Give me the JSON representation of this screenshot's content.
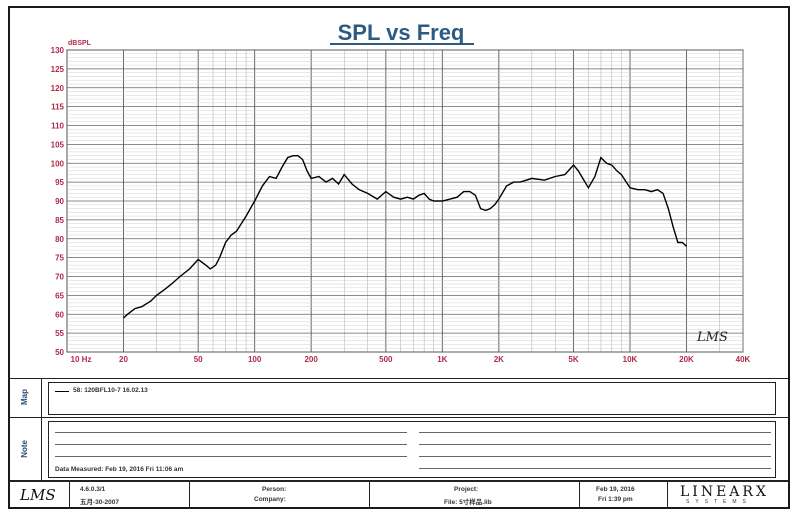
{
  "chart_data": {
    "type": "line",
    "title": "SPL vs Freq",
    "ylabel_unit": "dBSPL",
    "xscale": "log",
    "xlim": [
      10,
      40000
    ],
    "ylim": [
      50,
      130
    ],
    "x_tick_labels": [
      "10 Hz",
      "20",
      "50",
      "100",
      "200",
      "500",
      "1K",
      "2K",
      "5K",
      "10K",
      "20K",
      "40K"
    ],
    "x_tick_values": [
      10,
      20,
      50,
      100,
      200,
      500,
      1000,
      2000,
      5000,
      10000,
      20000,
      40000
    ],
    "y_ticks": [
      50,
      55,
      60,
      65,
      70,
      75,
      80,
      85,
      90,
      95,
      100,
      105,
      110,
      115,
      120,
      125,
      130
    ],
    "grid": true,
    "series": [
      {
        "name": "58: 120BFL10-7 16.02.13",
        "color": "#000000",
        "x": [
          20,
          21,
          23,
          25,
          28,
          30,
          33,
          36,
          40,
          45,
          50,
          55,
          58,
          62,
          65,
          70,
          75,
          80,
          90,
          100,
          110,
          120,
          130,
          140,
          150,
          160,
          170,
          180,
          190,
          200,
          220,
          240,
          260,
          280,
          300,
          330,
          360,
          400,
          450,
          500,
          550,
          600,
          650,
          700,
          750,
          800,
          850,
          900,
          1000,
          1100,
          1200,
          1300,
          1400,
          1500,
          1600,
          1700,
          1800,
          1900,
          2000,
          2200,
          2400,
          2600,
          3000,
          3500,
          4000,
          4500,
          5000,
          5300,
          5600,
          6000,
          6500,
          7000,
          7500,
          8000,
          8500,
          9000,
          10000,
          11000,
          12000,
          13000,
          14000,
          15000,
          16000,
          17000,
          18000,
          19000,
          20000
        ],
        "y": [
          59,
          60,
          61.5,
          62,
          63.5,
          65,
          66.5,
          68,
          70,
          72,
          74.5,
          73,
          72,
          73,
          75,
          79,
          81,
          82,
          86,
          90,
          94,
          96.5,
          96,
          99,
          101.5,
          102,
          102,
          101,
          98,
          96,
          96.5,
          95,
          96,
          94.5,
          97,
          94.5,
          93,
          92,
          90.5,
          92.5,
          91,
          90.5,
          91,
          90.5,
          91.5,
          92,
          90.5,
          90,
          90,
          90.5,
          91,
          92.5,
          92.5,
          91.5,
          88,
          87.5,
          88,
          89,
          90.5,
          94,
          95,
          95,
          96,
          95.5,
          96.5,
          97,
          99.5,
          98,
          96,
          93.5,
          96.5,
          101.5,
          100,
          99.5,
          98,
          97,
          93.5,
          93,
          93,
          92.5,
          93,
          92,
          88,
          83,
          79,
          79,
          78
        ]
      }
    ]
  },
  "map_panel": {
    "side_label": "Map",
    "legend_entry": "58: 120BFL10-7 16.02.13"
  },
  "note_panel": {
    "side_label": "Note",
    "measured_line": "Data Measured: Feb 19, 2016 Fri 11:06 am"
  },
  "footer": {
    "lms_logo": "LMS",
    "chart_logo": "LMS",
    "version": "4.6.0.3/1",
    "version_date": "五月-30-2007",
    "person_label": "Person:",
    "company_label": "Company:",
    "project_label": "Project:",
    "file_label": "File: 5寸样品.lib",
    "date": "Feb 19, 2016",
    "time": "Fri 1:39 pm",
    "brand": "LINEARX",
    "brand_sub": "SYSTEMS"
  }
}
